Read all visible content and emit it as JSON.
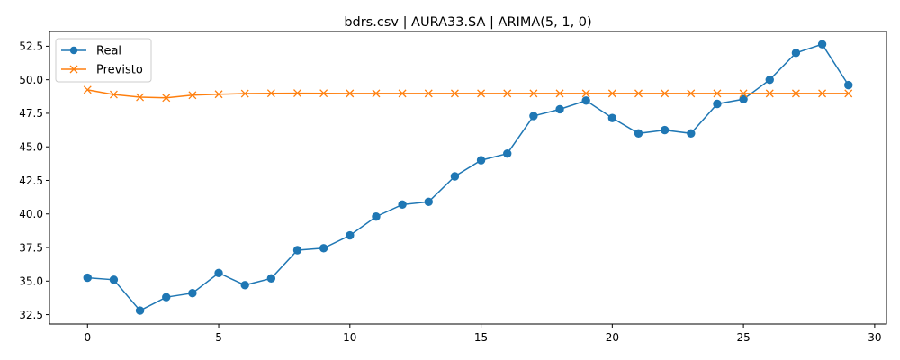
{
  "chart_data": {
    "type": "line",
    "title": "bdrs.csv | AURA33.SA | ARIMA(5, 1, 0)",
    "xlabel": "",
    "ylabel": "",
    "xlim": [
      -1.45,
      30.45
    ],
    "ylim": [
      31.8,
      53.6
    ],
    "x_ticks": [
      0,
      5,
      10,
      15,
      20,
      25,
      30
    ],
    "x_tick_labels": [
      "0",
      "5",
      "10",
      "15",
      "20",
      "25",
      "30"
    ],
    "y_ticks": [
      32.5,
      35.0,
      37.5,
      40.0,
      42.5,
      45.0,
      47.5,
      50.0,
      52.5
    ],
    "y_tick_labels": [
      "32.5",
      "35.0",
      "37.5",
      "40.0",
      "42.5",
      "45.0",
      "47.5",
      "50.0",
      "52.5"
    ],
    "grid": false,
    "legend_position": "top-left",
    "x": [
      0,
      1,
      2,
      3,
      4,
      5,
      6,
      7,
      8,
      9,
      10,
      11,
      12,
      13,
      14,
      15,
      16,
      17,
      18,
      19,
      20,
      21,
      22,
      23,
      24,
      25,
      26,
      27,
      28,
      29
    ],
    "series": [
      {
        "name": "Real",
        "color": "#1f77b4",
        "marker": "circle",
        "values": [
          35.25,
          35.1,
          32.8,
          33.8,
          34.1,
          35.6,
          34.7,
          35.2,
          37.3,
          37.45,
          38.4,
          39.8,
          40.7,
          40.9,
          42.8,
          44.0,
          44.5,
          47.3,
          47.8,
          48.45,
          47.15,
          46.0,
          46.25,
          46.0,
          48.2,
          48.55,
          50.0,
          52.0,
          52.65,
          49.6
        ]
      },
      {
        "name": "Previsto",
        "color": "#ff7f0e",
        "marker": "x",
        "values": [
          49.25,
          48.9,
          48.7,
          48.65,
          48.85,
          48.92,
          48.97,
          48.99,
          49.0,
          48.99,
          48.98,
          48.98,
          48.98,
          48.98,
          48.98,
          48.98,
          48.98,
          48.98,
          48.98,
          48.98,
          48.98,
          48.98,
          48.98,
          48.98,
          48.98,
          48.98,
          48.98,
          48.98,
          48.98,
          48.98
        ]
      }
    ]
  }
}
